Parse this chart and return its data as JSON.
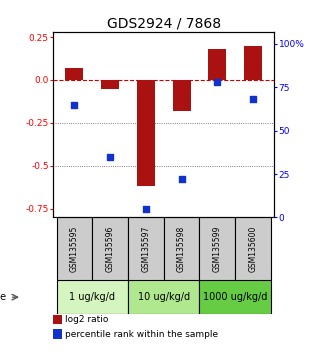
{
  "title": "GDS2924 / 7868",
  "samples": [
    "GSM135595",
    "GSM135596",
    "GSM135597",
    "GSM135598",
    "GSM135599",
    "GSM135600"
  ],
  "log2_ratio": [
    0.07,
    -0.05,
    -0.62,
    -0.18,
    0.18,
    0.2
  ],
  "percentile_rank": [
    65,
    35,
    5,
    22,
    78,
    68
  ],
  "ylim_left": [
    -0.8,
    0.28
  ],
  "ylim_right": [
    0,
    107
  ],
  "yticks_left": [
    0.25,
    0.0,
    -0.25,
    -0.5,
    -0.75
  ],
  "yticks_right": [
    100,
    75,
    50,
    25,
    0
  ],
  "bar_color": "#aa1111",
  "dot_color": "#1133cc",
  "dot_size": 22,
  "bar_width": 0.5,
  "doses": [
    {
      "label": "1 ug/kg/d",
      "color": "#d4f5c0"
    },
    {
      "label": "10 ug/kg/d",
      "color": "#b0e890"
    },
    {
      "label": "1000 ug/kg/d",
      "color": "#66cc44"
    }
  ],
  "legend_bar_label": "log2 ratio",
  "legend_dot_label": "percentile rank within the sample",
  "ref_line_color": "#cc0000",
  "grid_line_color": "#555555",
  "sample_cell_color": "#cccccc",
  "title_fontsize": 10,
  "tick_fontsize": 6.5,
  "sample_fontsize": 5.5,
  "dose_fontsize": 7,
  "legend_fontsize": 6.5
}
